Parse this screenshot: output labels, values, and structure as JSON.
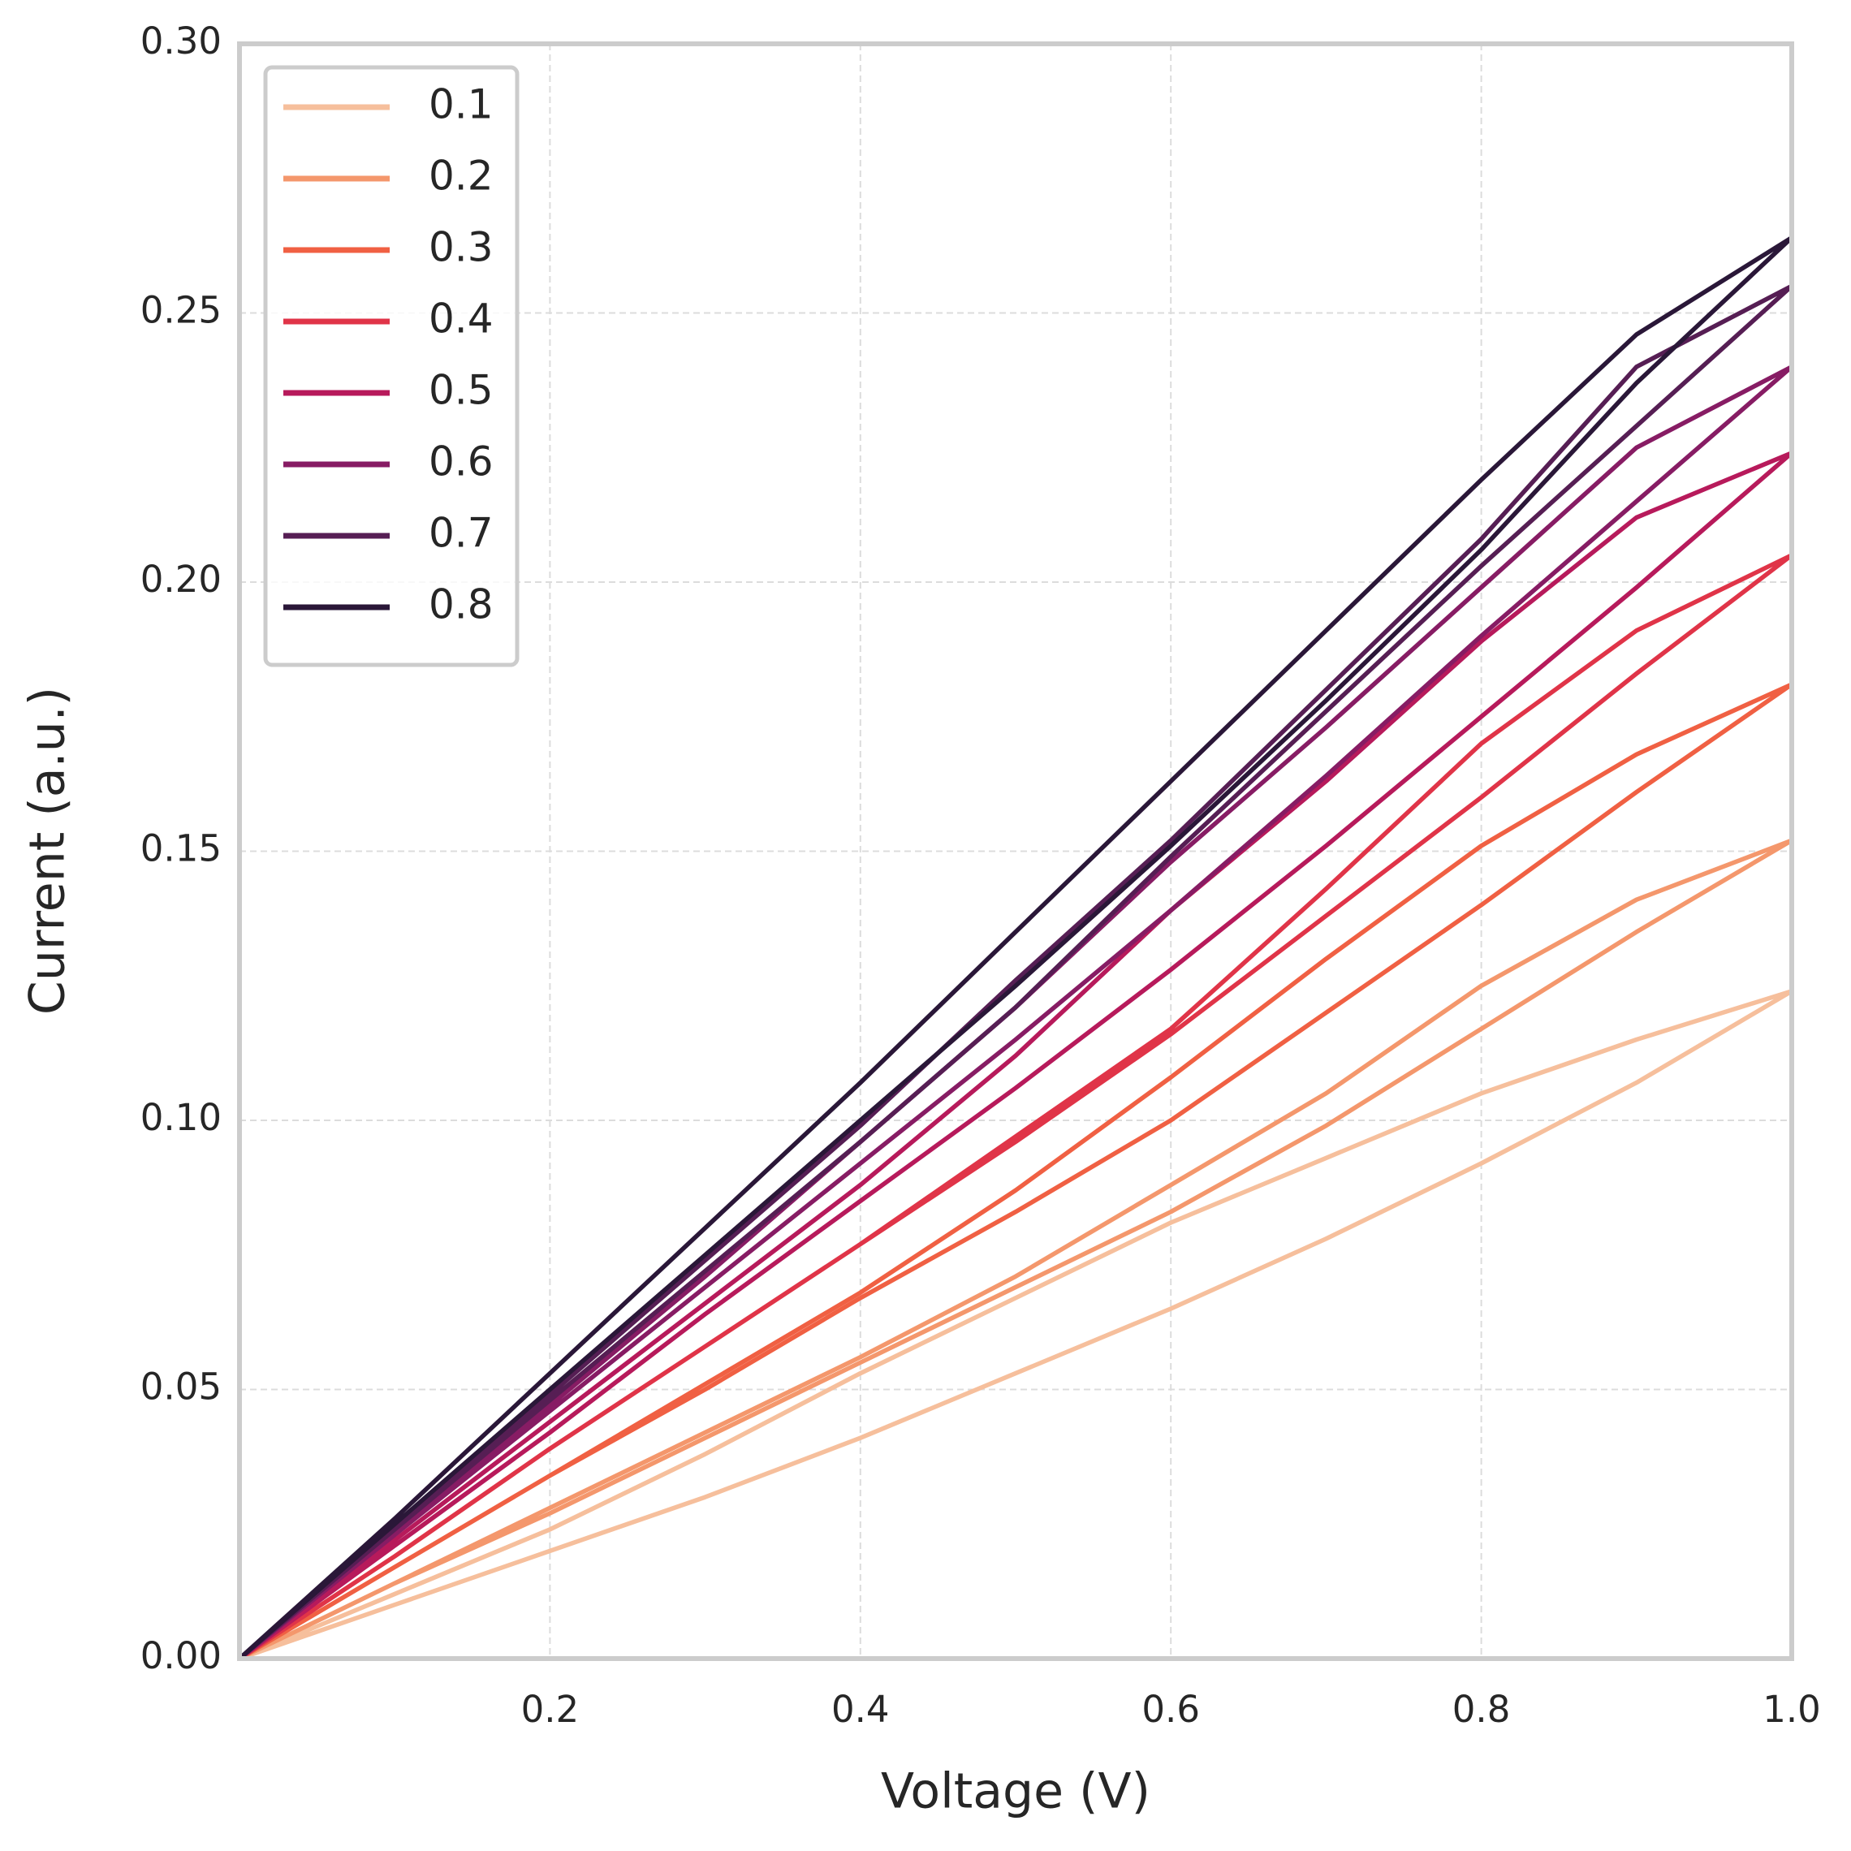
{
  "chart_data": {
    "type": "line",
    "xlabel": "Voltage (V)",
    "ylabel": "Current (a.u.)",
    "x": [
      0,
      0.1,
      0.2,
      0.3,
      0.4,
      0.5,
      0.6,
      0.7,
      0.8,
      0.9,
      1.0,
      0.9,
      0.8,
      0.7,
      0.6,
      0.5,
      0.4,
      0.3,
      0.2,
      0.1,
      0
    ],
    "series": [
      {
        "name": "0.1",
        "color": "#f6bf9c",
        "values": [
          0,
          0.01,
          0.02,
          0.03,
          0.041,
          0.053,
          0.065,
          0.078,
          0.092,
          0.107,
          0.124,
          0.115,
          0.105,
          0.093,
          0.081,
          0.067,
          0.053,
          0.038,
          0.024,
          0.012,
          0
        ]
      },
      {
        "name": "0.2",
        "color": "#f4976c",
        "values": [
          0,
          0.014,
          0.027,
          0.041,
          0.055,
          0.069,
          0.083,
          0.099,
          0.117,
          0.135,
          0.152,
          0.141,
          0.125,
          0.105,
          0.088,
          0.071,
          0.056,
          0.042,
          0.028,
          0.014,
          0
        ]
      },
      {
        "name": "0.3",
        "color": "#f06043",
        "values": [
          0,
          0.017,
          0.034,
          0.05,
          0.067,
          0.083,
          0.1,
          0.12,
          0.14,
          0.161,
          0.181,
          0.168,
          0.151,
          0.13,
          0.108,
          0.087,
          0.068,
          0.051,
          0.034,
          0.017,
          0
        ]
      },
      {
        "name": "0.4",
        "color": "#e03448",
        "values": [
          0,
          0.019,
          0.039,
          0.058,
          0.077,
          0.096,
          0.116,
          0.138,
          0.16,
          0.183,
          0.205,
          0.191,
          0.17,
          0.143,
          0.117,
          0.097,
          0.077,
          0.058,
          0.039,
          0.019,
          0
        ]
      },
      {
        "name": "0.5",
        "color": "#b71a5b",
        "values": [
          0,
          0.021,
          0.042,
          0.064,
          0.085,
          0.106,
          0.128,
          0.151,
          0.175,
          0.199,
          0.224,
          0.212,
          0.189,
          0.163,
          0.139,
          0.112,
          0.088,
          0.066,
          0.044,
          0.022,
          0
        ]
      },
      {
        "name": "0.6",
        "color": "#871c64",
        "values": [
          0,
          0.023,
          0.046,
          0.069,
          0.092,
          0.115,
          0.139,
          0.164,
          0.19,
          0.215,
          0.24,
          0.225,
          0.199,
          0.173,
          0.148,
          0.121,
          0.096,
          0.071,
          0.047,
          0.023,
          0
        ]
      },
      {
        "name": "0.7",
        "color": "#561e54",
        "values": [
          0,
          0.024,
          0.048,
          0.072,
          0.096,
          0.121,
          0.149,
          0.176,
          0.203,
          0.229,
          0.255,
          0.24,
          0.208,
          0.18,
          0.152,
          0.126,
          0.099,
          0.074,
          0.049,
          0.024,
          0
        ]
      },
      {
        "name": "0.8",
        "color": "#2a1738",
        "values": [
          0,
          0.025,
          0.05,
          0.075,
          0.1,
          0.125,
          0.151,
          0.178,
          0.206,
          0.237,
          0.264,
          0.246,
          0.219,
          0.191,
          0.163,
          0.135,
          0.107,
          0.08,
          0.053,
          0.026,
          0
        ]
      }
    ],
    "xlim": [
      0,
      1.0
    ],
    "xticks": [
      0.2,
      0.4,
      0.6,
      0.8,
      {
        "value": 1.0,
        "label": "1.0"
      }
    ],
    "ylim": [
      0,
      0.3
    ],
    "yticks": [
      {
        "value": 0,
        "label": "0.00"
      },
      {
        "value": 0.05,
        "label": "0.05"
      },
      {
        "value": 0.1,
        "label": "0.10"
      },
      {
        "value": 0.15,
        "label": "0.15"
      },
      {
        "value": 0.2,
        "label": "0.20"
      },
      {
        "value": 0.25,
        "label": "0.25"
      },
      {
        "value": 0.3,
        "label": "0.30"
      }
    ],
    "grid": true,
    "legend": "upper left"
  }
}
